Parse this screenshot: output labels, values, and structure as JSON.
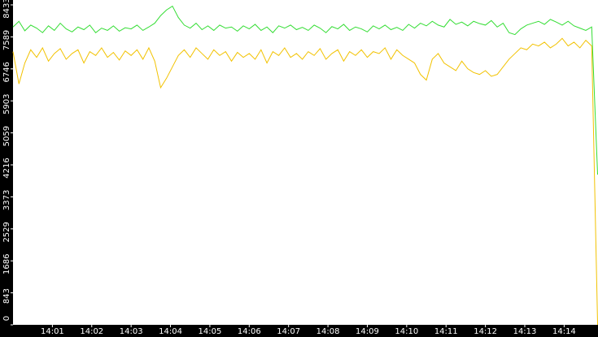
{
  "chart_data": {
    "type": "line",
    "x": [
      0,
      0.15,
      0.3,
      0.45,
      0.6,
      0.75,
      0.9,
      1.05,
      1.2,
      1.35,
      1.5,
      1.65,
      1.8,
      1.95,
      2.1,
      2.25,
      2.4,
      2.55,
      2.7,
      2.85,
      3,
      3.15,
      3.3,
      3.45,
      3.6,
      3.75,
      3.9,
      4.05,
      4.2,
      4.35,
      4.5,
      4.65,
      4.8,
      4.95,
      5.1,
      5.25,
      5.4,
      5.55,
      5.7,
      5.85,
      6,
      6.15,
      6.3,
      6.45,
      6.6,
      6.75,
      6.9,
      7.05,
      7.2,
      7.35,
      7.5,
      7.65,
      7.8,
      7.95,
      8.1,
      8.25,
      8.4,
      8.55,
      8.7,
      8.85,
      9,
      9.15,
      9.3,
      9.45,
      9.6,
      9.75,
      9.9,
      10.05,
      10.2,
      10.35,
      10.5,
      10.65,
      10.8,
      10.95,
      11.1,
      11.25,
      11.4,
      11.55,
      11.7,
      11.85,
      12,
      12.15,
      12.3,
      12.45,
      12.6,
      12.75,
      12.9,
      13.05,
      13.2,
      13.35,
      13.5,
      13.65,
      13.8,
      13.95,
      14.1,
      14.25,
      14.4,
      14.55,
      14.7,
      14.85
    ],
    "series": [
      {
        "color": "#33dd33",
        "values": [
          7850,
          8000,
          7750,
          7900,
          7820,
          7700,
          7880,
          7760,
          7950,
          7800,
          7720,
          7850,
          7780,
          7900,
          7700,
          7820,
          7760,
          7880,
          7740,
          7830,
          7800,
          7900,
          7760,
          7850,
          7950,
          8150,
          8300,
          8400,
          8100,
          7900,
          7820,
          7950,
          7780,
          7880,
          7760,
          7900,
          7820,
          7850,
          7740,
          7880,
          7800,
          7920,
          7760,
          7850,
          7700,
          7880,
          7820,
          7900,
          7780,
          7840,
          7760,
          7900,
          7820,
          7700,
          7860,
          7800,
          7920,
          7760,
          7850,
          7800,
          7720,
          7880,
          7800,
          7900,
          7780,
          7840,
          7760,
          7920,
          7820,
          7950,
          7880,
          8000,
          7900,
          7850,
          8050,
          7920,
          7980,
          7880,
          8000,
          7940,
          7900,
          8020,
          7850,
          7950,
          7700,
          7650,
          7800,
          7900,
          7950,
          8000,
          7920,
          8050,
          7980,
          7900,
          8000,
          7880,
          7820,
          7760,
          7850,
          3960
        ]
      },
      {
        "color": "#f2c200",
        "values": [
          7200,
          6350,
          6900,
          7250,
          7050,
          7300,
          6950,
          7150,
          7280,
          7000,
          7150,
          7250,
          6900,
          7200,
          7100,
          7300,
          7050,
          7180,
          6980,
          7220,
          7100,
          7250,
          7000,
          7300,
          6950,
          6250,
          6500,
          6800,
          7100,
          7250,
          7050,
          7300,
          7150,
          7000,
          7250,
          7100,
          7200,
          6950,
          7180,
          7050,
          7150,
          7000,
          7250,
          6900,
          7200,
          7100,
          7300,
          7050,
          7150,
          7000,
          7200,
          7100,
          7280,
          7000,
          7150,
          7250,
          6950,
          7200,
          7100,
          7250,
          7050,
          7200,
          7150,
          7300,
          7000,
          7250,
          7100,
          7000,
          6900,
          6600,
          6450,
          7000,
          7150,
          6900,
          6800,
          6700,
          6950,
          6750,
          6650,
          6600,
          6700,
          6550,
          6600,
          6800,
          7000,
          7150,
          7300,
          7250,
          7400,
          7350,
          7450,
          7300,
          7400,
          7550,
          7350,
          7450,
          7300,
          7500,
          7350,
          0
        ]
      }
    ],
    "xlim": [
      0,
      14.86
    ],
    "xticks": [
      {
        "value": 1,
        "label": "14:01"
      },
      {
        "value": 2,
        "label": "14:02"
      },
      {
        "value": 3,
        "label": "14:03"
      },
      {
        "value": 4,
        "label": "14:04"
      },
      {
        "value": 5,
        "label": "14:05"
      },
      {
        "value": 6,
        "label": "14:06"
      },
      {
        "value": 7,
        "label": "14:07"
      },
      {
        "value": 8,
        "label": "14:08"
      },
      {
        "value": 9,
        "label": "14:09"
      },
      {
        "value": 10,
        "label": "14:10"
      },
      {
        "value": 11,
        "label": "14:11"
      },
      {
        "value": 12,
        "label": "14:12"
      },
      {
        "value": 13,
        "label": "14:13"
      },
      {
        "value": 14,
        "label": "14:14"
      }
    ],
    "ylim": [
      0,
      8433
    ],
    "yticks": [
      0,
      843,
      1686,
      2529,
      3373,
      4216,
      5059,
      5903,
      6746,
      7589,
      8433
    ]
  }
}
